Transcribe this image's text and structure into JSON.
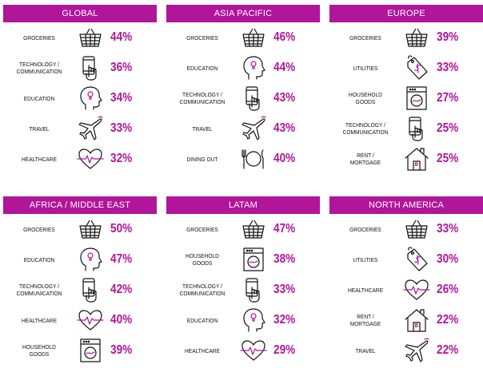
{
  "colors": {
    "accent": "#b0159a",
    "icon_stroke": "#111111"
  },
  "panels": [
    {
      "title": "GLOBAL",
      "rows": [
        {
          "label": "GROCERIES",
          "icon": "basket-icon",
          "value": "44%"
        },
        {
          "label": "TECHNOLOGY /\nCOMMUNICATION",
          "icon": "phone-hand-icon",
          "value": "36%"
        },
        {
          "label": "EDUCATION",
          "icon": "head-bulb-icon",
          "value": "34%"
        },
        {
          "label": "TRAVEL",
          "icon": "airplane-icon",
          "value": "33%"
        },
        {
          "label": "HEALTHCARE",
          "icon": "heart-pulse-icon",
          "value": "32%"
        }
      ]
    },
    {
      "title": "ASIA PACIFIC",
      "rows": [
        {
          "label": "GROCERIES",
          "icon": "basket-icon",
          "value": "46%"
        },
        {
          "label": "EDUCATION",
          "icon": "head-bulb-icon",
          "value": "44%"
        },
        {
          "label": "TECHNOLOGY /\nCOMMUNICATION",
          "icon": "phone-hand-icon",
          "value": "43%"
        },
        {
          "label": "TRAVEL",
          "icon": "airplane-icon",
          "value": "43%"
        },
        {
          "label": "DINING OUT",
          "icon": "plate-cutlery-icon",
          "value": "40%"
        }
      ]
    },
    {
      "title": "EUROPE",
      "rows": [
        {
          "label": "GROCERIES",
          "icon": "basket-icon",
          "value": "39%"
        },
        {
          "label": "UTILITIES",
          "icon": "price-tag-icon",
          "value": "33%"
        },
        {
          "label": "HOUSEHOLD\nGOODS",
          "icon": "washing-machine-icon",
          "value": "27%"
        },
        {
          "label": "TECHNOLOGY /\nCOMMUNICATION",
          "icon": "phone-hand-icon",
          "value": "25%"
        },
        {
          "label": "RENT /\nMORTGAGE",
          "icon": "house-icon",
          "value": "25%"
        }
      ]
    },
    {
      "title": "AFRICA / MIDDLE EAST",
      "rows": [
        {
          "label": "GROCERIES",
          "icon": "basket-icon",
          "value": "50%"
        },
        {
          "label": "EDUCATION",
          "icon": "head-bulb-icon",
          "value": "47%"
        },
        {
          "label": "TECHNOLOGY /\nCOMMUNICATION",
          "icon": "phone-hand-icon",
          "value": "42%"
        },
        {
          "label": "HEALTHCARE",
          "icon": "heart-pulse-icon",
          "value": "40%"
        },
        {
          "label": "HOUSEHOLD\nGOODS",
          "icon": "washing-machine-icon",
          "value": "39%"
        }
      ]
    },
    {
      "title": "LATAM",
      "rows": [
        {
          "label": "GROCERIES",
          "icon": "basket-icon",
          "value": "47%"
        },
        {
          "label": "HOUSEHOLD\nGOODS",
          "icon": "washing-machine-icon",
          "value": "38%"
        },
        {
          "label": "TECHNOLOGY /\nCOMMUNICATION",
          "icon": "phone-hand-icon",
          "value": "33%"
        },
        {
          "label": "EDUCATION",
          "icon": "head-bulb-icon",
          "value": "32%"
        },
        {
          "label": "HEALTHCARE",
          "icon": "heart-pulse-icon",
          "value": "29%"
        }
      ]
    },
    {
      "title": "NORTH AMERICA",
      "rows": [
        {
          "label": "GROCERIES",
          "icon": "basket-icon",
          "value": "33%"
        },
        {
          "label": "UTILITIES",
          "icon": "price-tag-icon",
          "value": "30%"
        },
        {
          "label": "HEALTHCARE",
          "icon": "heart-pulse-icon",
          "value": "26%"
        },
        {
          "label": "RENT /\nMORTGAGE",
          "icon": "house-icon",
          "value": "22%"
        },
        {
          "label": "TRAVEL",
          "icon": "airplane-icon",
          "value": "22%"
        }
      ]
    }
  ]
}
